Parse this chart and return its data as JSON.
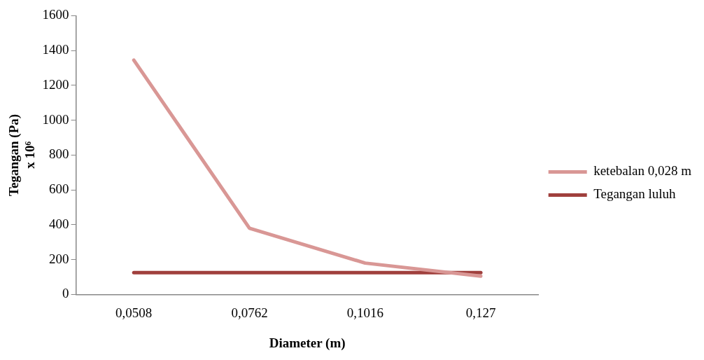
{
  "chart_data": {
    "type": "line",
    "xlabel": "Diameter (m)",
    "ylabel": "Tegangan (Pa)\nx 10⁶",
    "categories": [
      "0,0508",
      "0,0762",
      "0,1016",
      "0,127"
    ],
    "series": [
      {
        "name": "ketebalan 0,028 m",
        "color": "#d99795",
        "values": [
          1345,
          380,
          180,
          105
        ]
      },
      {
        "name": "Tegangan luluh",
        "color": "#a0403d",
        "values": [
          125,
          125,
          125,
          125
        ]
      }
    ],
    "ylim": [
      0,
      1600
    ],
    "yticks": [
      0,
      200,
      400,
      600,
      800,
      1000,
      1200,
      1400,
      1600
    ],
    "grid": false,
    "legend": "right",
    "marker": "none",
    "line_style": "solid"
  }
}
